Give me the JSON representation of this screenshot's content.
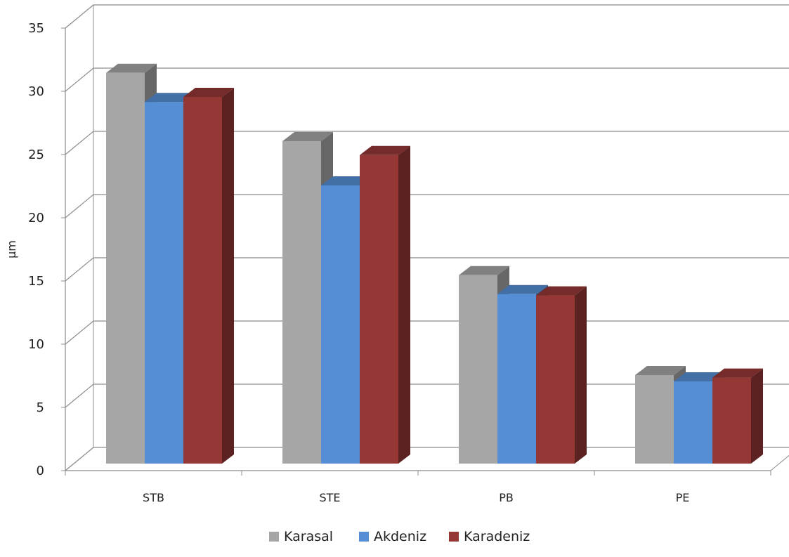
{
  "chart_data": {
    "type": "bar",
    "title": "",
    "xlabel": "",
    "ylabel": "µm",
    "ylim": [
      0,
      35
    ],
    "yticks": [
      0,
      5,
      10,
      15,
      20,
      25,
      30,
      35
    ],
    "grid": true,
    "legend_position": "bottom",
    "categories": [
      "STB",
      "STE",
      "PB",
      "PE"
    ],
    "series": [
      {
        "name": "Karasal",
        "values": [
          30.9,
          25.5,
          14.9,
          7.0
        ],
        "color": "#a6a6a6"
      },
      {
        "name": "Akdeniz",
        "values": [
          28.6,
          22.0,
          13.4,
          6.5
        ],
        "color": "#558ed5"
      },
      {
        "name": "Karadeniz",
        "values": [
          29.0,
          24.4,
          13.3,
          6.8
        ],
        "color": "#953735"
      }
    ]
  }
}
